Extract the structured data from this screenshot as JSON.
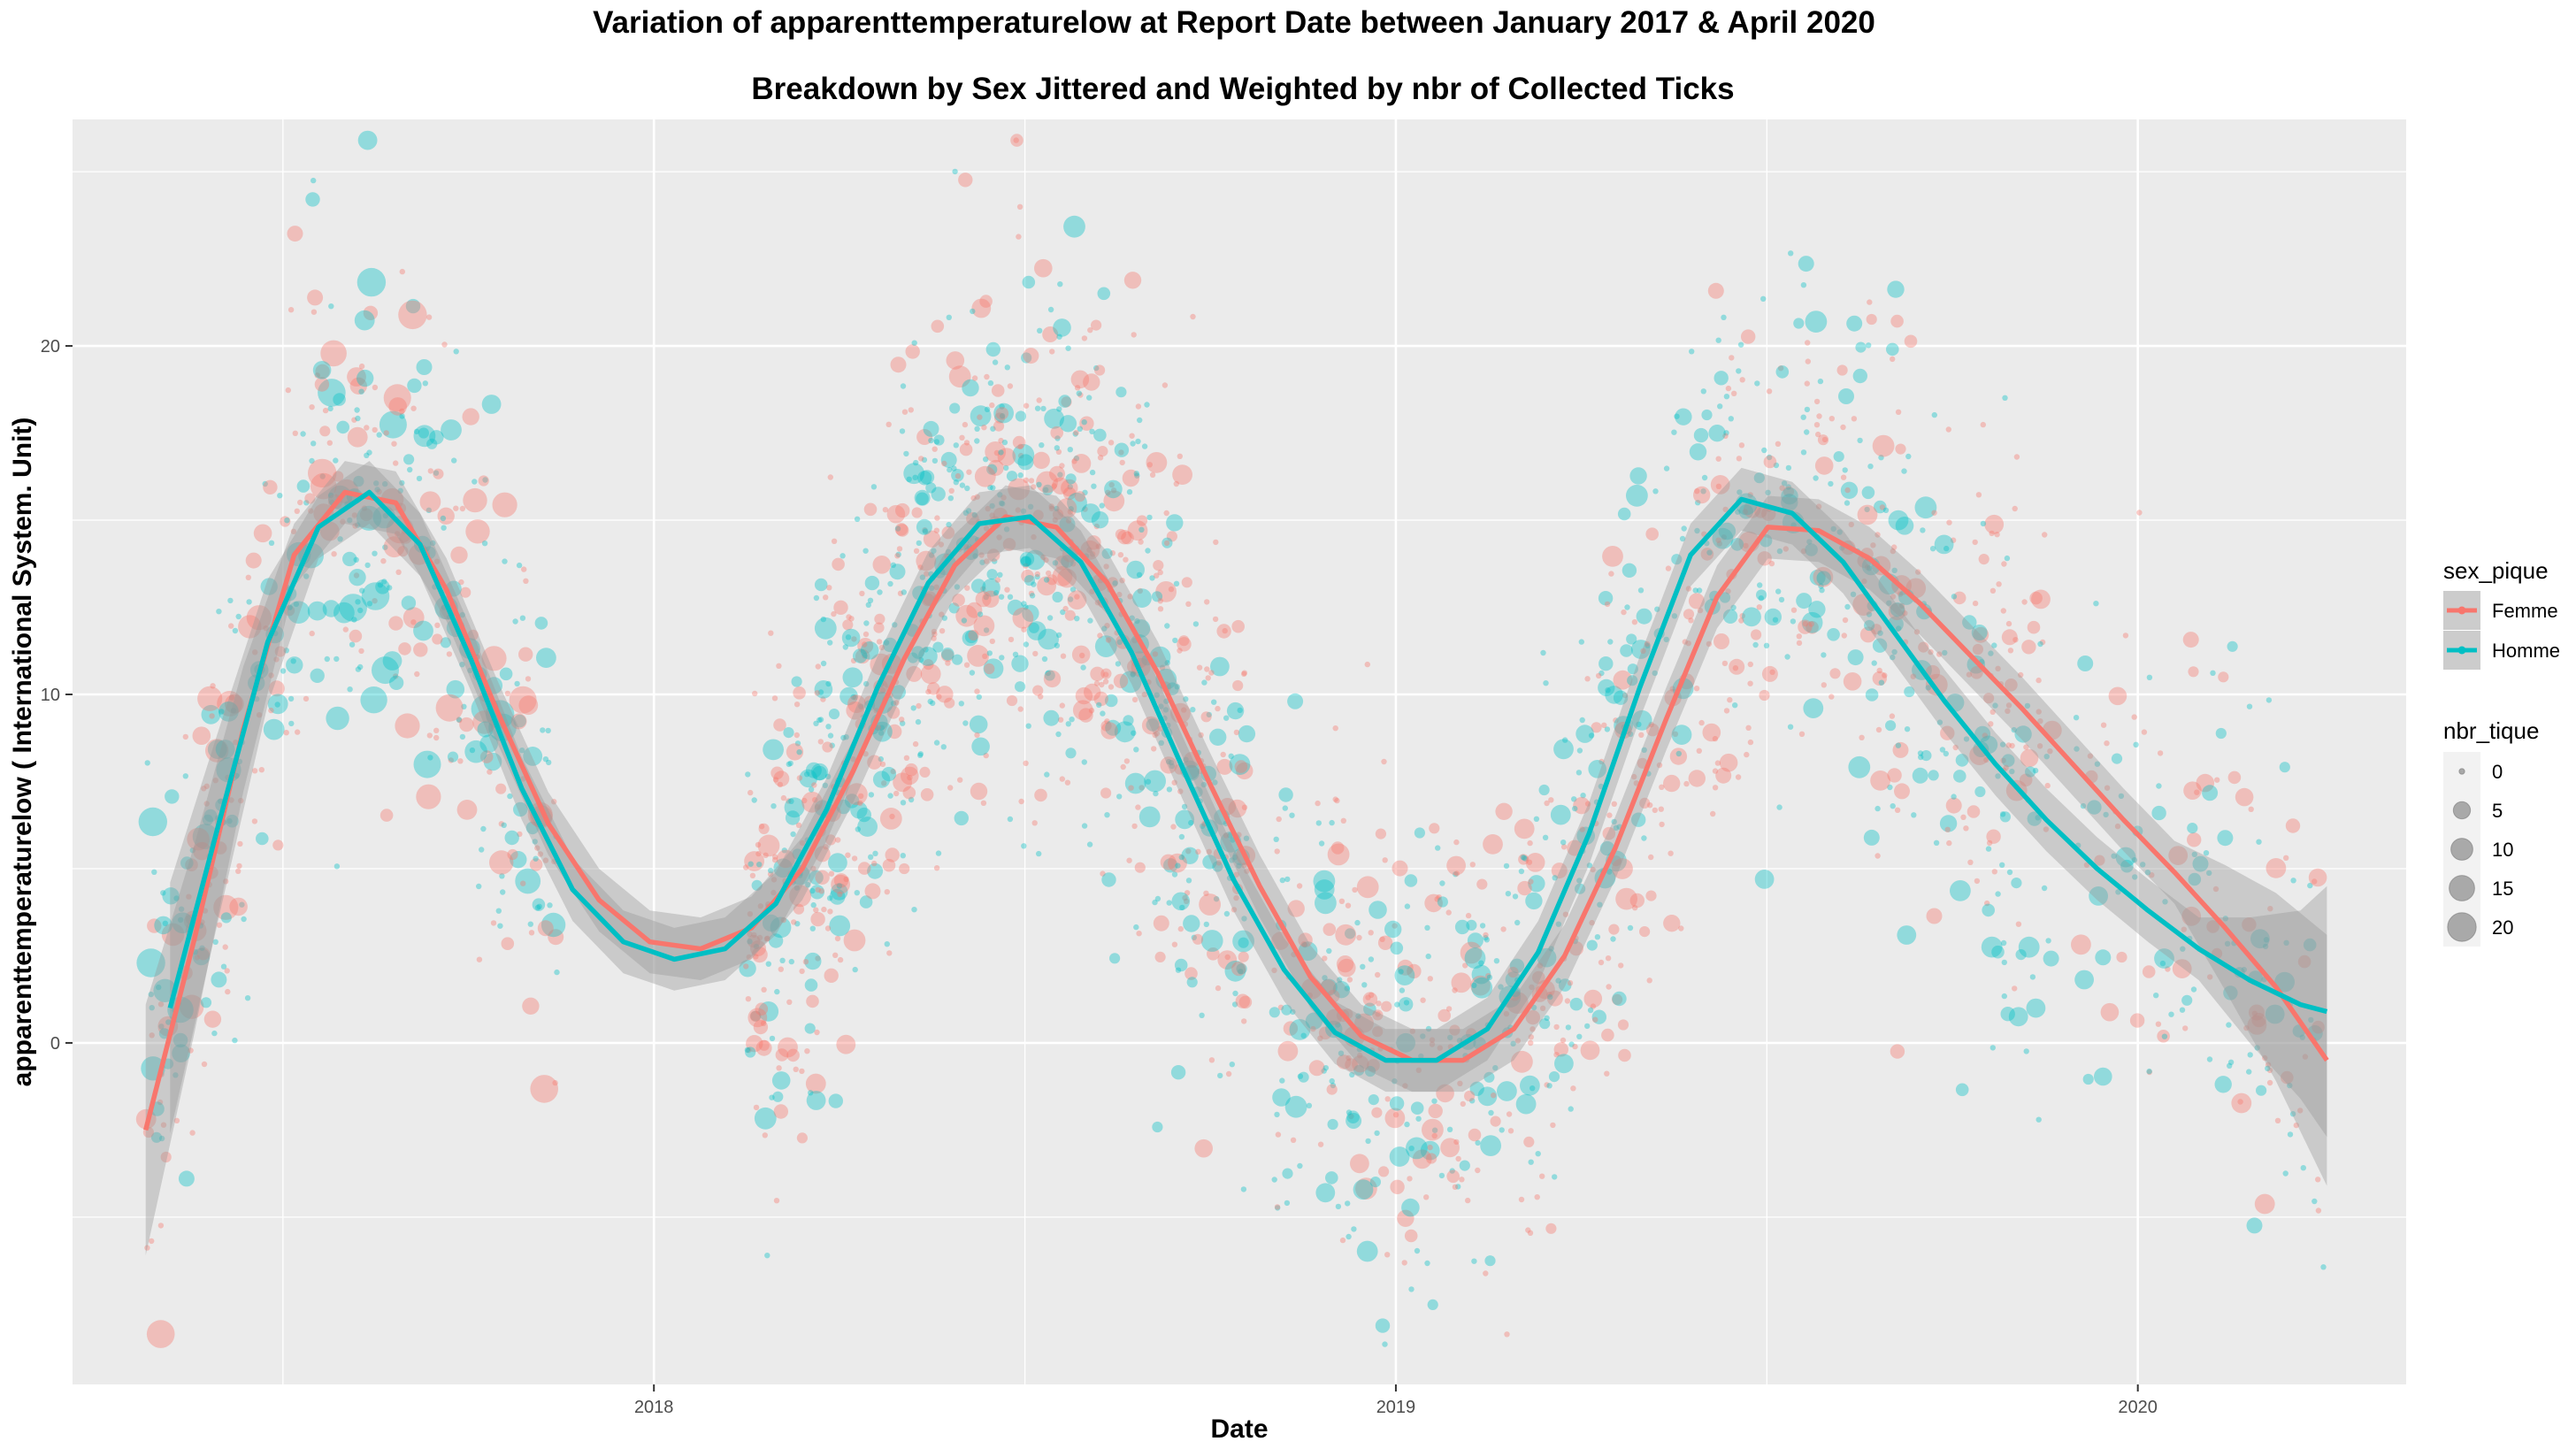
{
  "chart_data": {
    "type": "scatter",
    "title": "Variation of  apparenttemperaturelow  at Report Date between January 2017 & April 2020",
    "subtitle": "Breakdown by Sex Jittered and Weighted by nbr of Collected Ticks",
    "xlabel": "Date",
    "ylabel": "apparenttemperaturelow ( International System. Unit)",
    "x_ticks": [
      "2018",
      "2019",
      "2020"
    ],
    "y_ticks": [
      0,
      10,
      20
    ],
    "xlim": [
      "2017-03-21",
      "2020-05-12"
    ],
    "ylim": [
      -9.8,
      26.5
    ],
    "grid": true,
    "colors": {
      "Femme": "#F8766D",
      "Homme": "#00BFC4",
      "band": "#999999",
      "panel": "#EBEBEB",
      "grid": "#FFFFFF"
    },
    "legend_color": {
      "title": "sex_pique",
      "items": [
        "Femme",
        "Homme"
      ],
      "position": "right"
    },
    "legend_size": {
      "title": "nbr_tique",
      "items": [
        "0",
        "5",
        "10",
        "15",
        "20"
      ],
      "position": "right"
    },
    "series": [
      {
        "name": "Femme",
        "smooth": [
          [
            "2017-04-26",
            -2.5
          ],
          [
            "2017-05-20",
            3
          ],
          [
            "2017-06-13",
            9
          ],
          [
            "2017-07-08",
            14
          ],
          [
            "2017-08-02",
            15.8
          ],
          [
            "2017-08-27",
            15.5
          ],
          [
            "2017-09-21",
            13
          ],
          [
            "2017-10-16",
            9.5
          ],
          [
            "2017-11-10",
            6.3
          ],
          [
            "2017-12-05",
            4.1
          ],
          [
            "2017-12-30",
            2.9
          ],
          [
            "2018-01-24",
            2.7
          ],
          [
            "2018-02-18",
            3.3
          ],
          [
            "2018-03-15",
            5
          ],
          [
            "2018-04-09",
            7.8
          ],
          [
            "2018-05-04",
            11
          ],
          [
            "2018-05-29",
            13.7
          ],
          [
            "2018-06-23",
            15.1
          ],
          [
            "2018-07-18",
            14.8
          ],
          [
            "2018-08-12",
            13.2
          ],
          [
            "2018-09-06",
            10.6
          ],
          [
            "2018-10-01",
            7.5
          ],
          [
            "2018-10-26",
            4.5
          ],
          [
            "2018-11-20",
            1.9
          ],
          [
            "2018-12-15",
            0.2
          ],
          [
            "2019-01-09",
            -0.5
          ],
          [
            "2019-02-03",
            -0.5
          ],
          [
            "2019-02-28",
            0.4
          ],
          [
            "2019-03-25",
            2.5
          ],
          [
            "2019-04-19",
            5.6
          ],
          [
            "2019-05-14",
            9.3
          ],
          [
            "2019-06-08",
            12.8
          ],
          [
            "2019-07-03",
            14.8
          ],
          [
            "2019-07-28",
            14.7
          ],
          [
            "2019-08-22",
            13.9
          ],
          [
            "2019-09-16",
            12.6
          ],
          [
            "2019-10-11",
            11.1
          ],
          [
            "2019-11-05",
            9.6
          ],
          [
            "2019-11-30",
            8
          ],
          [
            "2019-12-25",
            6.4
          ],
          [
            "2020-01-19",
            4.9
          ],
          [
            "2020-02-13",
            3.3
          ],
          [
            "2020-03-09",
            1.6
          ],
          [
            "2020-04-03",
            -0.5
          ]
        ]
      },
      {
        "name": "Homme",
        "smooth": [
          [
            "2017-05-08",
            1
          ],
          [
            "2017-06-01",
            6.3
          ],
          [
            "2017-06-25",
            11.5
          ],
          [
            "2017-07-20",
            14.8
          ],
          [
            "2017-08-14",
            15.8
          ],
          [
            "2017-09-08",
            14.3
          ],
          [
            "2017-10-03",
            11
          ],
          [
            "2017-10-28",
            7.3
          ],
          [
            "2017-11-22",
            4.4
          ],
          [
            "2017-12-17",
            2.9
          ],
          [
            "2018-01-11",
            2.4
          ],
          [
            "2018-02-05",
            2.7
          ],
          [
            "2018-03-02",
            4
          ],
          [
            "2018-03-27",
            6.7
          ],
          [
            "2018-04-21",
            10.2
          ],
          [
            "2018-05-16",
            13.2
          ],
          [
            "2018-06-10",
            14.9
          ],
          [
            "2018-07-05",
            15.1
          ],
          [
            "2018-07-30",
            13.8
          ],
          [
            "2018-08-24",
            11.2
          ],
          [
            "2018-09-18",
            7.9
          ],
          [
            "2018-10-13",
            4.7
          ],
          [
            "2018-11-07",
            2.1
          ],
          [
            "2018-12-02",
            0.3
          ],
          [
            "2018-12-27",
            -0.5
          ],
          [
            "2019-01-21",
            -0.5
          ],
          [
            "2019-02-15",
            0.4
          ],
          [
            "2019-03-12",
            2.6
          ],
          [
            "2019-04-06",
            6
          ],
          [
            "2019-05-01",
            10.2
          ],
          [
            "2019-05-26",
            14
          ],
          [
            "2019-06-20",
            15.6
          ],
          [
            "2019-07-15",
            15.2
          ],
          [
            "2019-08-09",
            13.8
          ],
          [
            "2019-09-03",
            11.8
          ],
          [
            "2019-09-28",
            9.8
          ],
          [
            "2019-10-23",
            8
          ],
          [
            "2019-11-17",
            6.4
          ],
          [
            "2019-12-12",
            5
          ],
          [
            "2020-01-06",
            3.8
          ],
          [
            "2020-01-31",
            2.7
          ],
          [
            "2020-02-25",
            1.8
          ],
          [
            "2020-03-21",
            1.1
          ],
          [
            "2020-04-03",
            0.9
          ]
        ]
      }
    ],
    "scatter_clusters": [
      {
        "x_range": [
          "2017-04-26",
          "2017-11-15"
        ],
        "y_mean_follows_smooth": true,
        "spread": 3.2,
        "count": 520,
        "size_range": [
          0,
          20
        ]
      },
      {
        "x_range": [
          "2018-02-15",
          "2018-10-20"
        ],
        "y_mean_follows_smooth": true,
        "spread": 3.6,
        "count": 1150,
        "size_range": [
          0,
          10
        ]
      },
      {
        "x_range": [
          "2018-11-01",
          "2019-11-20"
        ],
        "y_mean_follows_smooth": true,
        "spread": 3.6,
        "count": 1050,
        "size_range": [
          0,
          10
        ]
      },
      {
        "x_range": [
          "2019-12-01",
          "2020-04-03"
        ],
        "y_mean_follows_smooth": true,
        "spread": 3.3,
        "count": 170,
        "size_range": [
          0,
          8
        ]
      }
    ]
  }
}
